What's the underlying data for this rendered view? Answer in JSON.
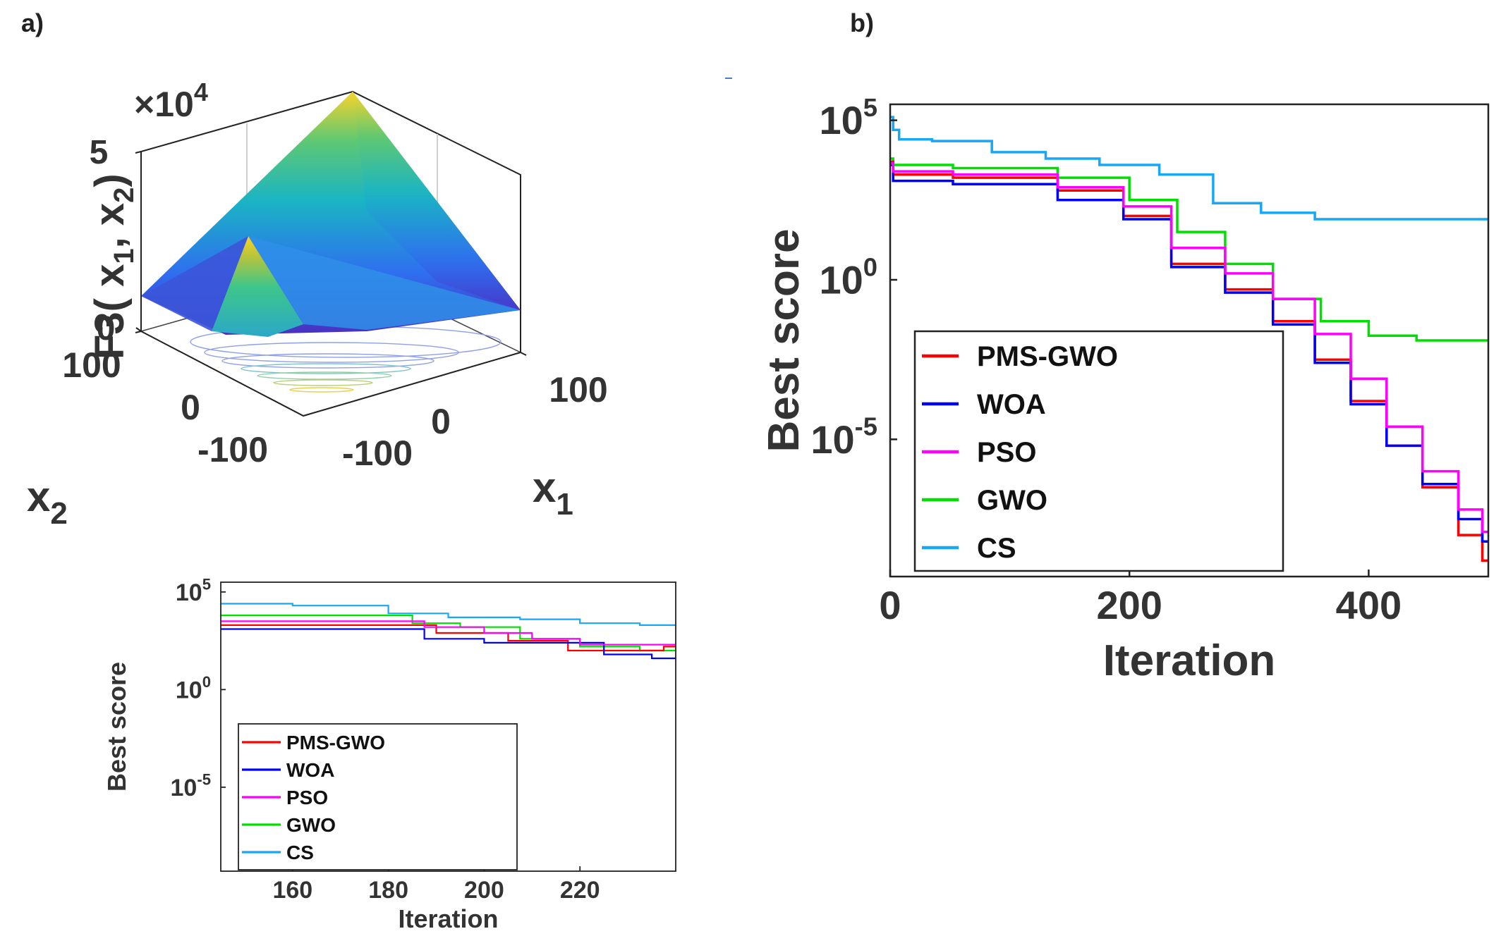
{
  "panels": {
    "a_label": "a)",
    "b_label": "b)"
  },
  "surface": {
    "zlabel_main": "F3( x",
    "zlabel_sub1": "1",
    "zlabel_mid": ", x",
    "zlabel_sub2": "2",
    "zlabel_end": ")",
    "zscale": "×10",
    "zscale_exp": "4",
    "zticks": [
      "5",
      "0"
    ],
    "x2ticks": [
      "100",
      "0",
      "-100"
    ],
    "x1ticks": [
      "100",
      "0",
      "-100"
    ],
    "x2label": "x",
    "x2label_sub": "2",
    "x1label": "x",
    "x1label_sub": "1",
    "colormap": [
      "#3e26a8",
      "#2f6ef0",
      "#13b3c9",
      "#2fc89a",
      "#a9c536",
      "#f9d32a"
    ]
  },
  "legend_entries": [
    {
      "label": "PMS-GWO",
      "color": "#ff0000"
    },
    {
      "label": "WOA",
      "color": "#0000ff"
    },
    {
      "label": "PSO",
      "color": "#ff00ff"
    },
    {
      "label": "GWO",
      "color": "#00e000"
    },
    {
      "label": "CS",
      "color": "#17a7f5"
    }
  ],
  "chart_data": [
    {
      "type": "line",
      "panel": "b)",
      "xlabel": "Iteration",
      "ylabel": "Best score",
      "xticks": [
        "0",
        "200",
        "400"
      ],
      "yticks": [
        {
          "base": "10",
          "exp": "5"
        },
        {
          "base": "10",
          "exp": "0"
        },
        {
          "base": "10",
          "exp": "-5"
        }
      ],
      "xlim": [
        0,
        500
      ],
      "ylog10lim": [
        -9.3,
        5.5
      ],
      "yscale": "log",
      "series": [
        {
          "name": "CS",
          "color": "#17a7f5",
          "x": [
            0,
            5,
            10,
            60,
            110,
            150,
            200,
            250,
            290,
            330,
            380,
            500
          ],
          "log10y": [
            5.1,
            4.7,
            4.4,
            4.35,
            4.0,
            3.8,
            3.6,
            3.3,
            2.4,
            2.1,
            1.9,
            1.9
          ]
        },
        {
          "name": "GWO",
          "color": "#00e000",
          "x": [
            0,
            5,
            100,
            180,
            220,
            260,
            300,
            340,
            380,
            420,
            460,
            500
          ],
          "log10y": [
            3.8,
            3.6,
            3.5,
            3.2,
            2.5,
            1.5,
            0.5,
            -0.6,
            -1.3,
            -1.75,
            -1.9,
            -1.9
          ]
        },
        {
          "name": "PMS-GWO",
          "color": "#ff0000",
          "x": [
            0,
            5,
            100,
            180,
            210,
            260,
            300,
            340,
            370,
            400,
            430,
            460,
            490,
            500
          ],
          "log10y": [
            3.7,
            3.3,
            3.2,
            2.8,
            2.0,
            0.5,
            -0.3,
            -1.3,
            -2.5,
            -3.8,
            -5.2,
            -6.5,
            -8.0,
            -8.8
          ]
        },
        {
          "name": "WOA",
          "color": "#0000ff",
          "x": [
            0,
            5,
            100,
            180,
            210,
            260,
            300,
            340,
            370,
            400,
            430,
            460,
            490,
            500
          ],
          "log10y": [
            3.6,
            3.1,
            3.0,
            2.5,
            1.9,
            0.4,
            -0.4,
            -1.4,
            -2.6,
            -3.9,
            -5.2,
            -6.4,
            -7.5,
            -8.2
          ]
        },
        {
          "name": "PSO",
          "color": "#ff00ff",
          "x": [
            0,
            5,
            100,
            180,
            210,
            260,
            300,
            340,
            370,
            400,
            430,
            460,
            490,
            500
          ],
          "log10y": [
            3.65,
            3.4,
            3.3,
            2.9,
            2.3,
            1.0,
            0.2,
            -0.6,
            -1.7,
            -3.1,
            -4.6,
            -6.0,
            -7.2,
            -7.9
          ]
        }
      ]
    },
    {
      "type": "line",
      "panel": "inset",
      "xlabel": "Iteration",
      "ylabel": "Best score",
      "xticks": [
        "160",
        "180",
        "200",
        "220"
      ],
      "yticks": [
        {
          "base": "10",
          "exp": "5"
        },
        {
          "base": "10",
          "exp": "0"
        },
        {
          "base": "10",
          "exp": "-5"
        }
      ],
      "xlim": [
        145,
        240
      ],
      "ylog10lim": [
        -9.3,
        5.5
      ],
      "yscale": "log",
      "series": [
        {
          "name": "CS",
          "color": "#17a7f5",
          "x": [
            145,
            175,
            185,
            200,
            215,
            225,
            240
          ],
          "log10y": [
            4.4,
            4.3,
            3.9,
            3.7,
            3.6,
            3.4,
            3.3
          ]
        },
        {
          "name": "GWO",
          "color": "#00e000",
          "x": [
            145,
            180,
            190,
            200,
            215,
            225,
            240
          ],
          "log10y": [
            3.8,
            3.8,
            3.4,
            3.2,
            2.6,
            2.2,
            2.0
          ]
        },
        {
          "name": "PMS-GWO",
          "color": "#ff0000",
          "x": [
            145,
            180,
            200,
            210,
            225,
            235,
            240
          ],
          "log10y": [
            3.3,
            3.3,
            2.9,
            2.5,
            2.0,
            2.0,
            2.2
          ]
        },
        {
          "name": "WOA",
          "color": "#0000ff",
          "x": [
            145,
            185,
            190,
            210,
            220,
            230,
            240
          ],
          "log10y": [
            3.1,
            3.1,
            2.6,
            2.4,
            2.4,
            1.8,
            1.6
          ]
        },
        {
          "name": "PSO",
          "color": "#ff00ff",
          "x": [
            145,
            180,
            195,
            205,
            215,
            225,
            240
          ],
          "log10y": [
            3.5,
            3.5,
            3.2,
            2.9,
            2.6,
            2.3,
            2.3
          ]
        }
      ]
    }
  ]
}
